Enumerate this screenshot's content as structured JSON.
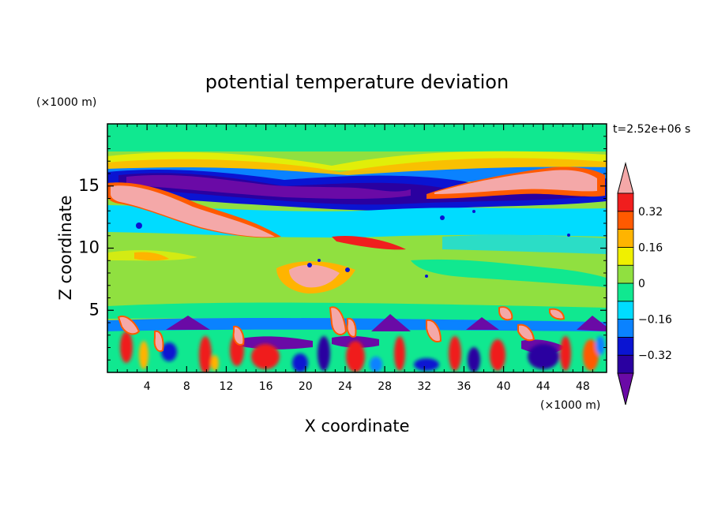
{
  "chart_data": {
    "type": "heatmap",
    "title": "potential temperature deviation",
    "time_label": "t=2.52e+06 s",
    "xlabel": "X coordinate",
    "ylabel": "Z coordinate",
    "x_unit": "(×1000 m)",
    "y_unit": "(×1000 m)",
    "xlim": [
      0,
      50.4
    ],
    "ylim": [
      0,
      20
    ],
    "x_ticks": [
      "4",
      "8",
      "12",
      "16",
      "20",
      "24",
      "28",
      "32",
      "36",
      "40",
      "44",
      "48"
    ],
    "x_tick_values": [
      4,
      8,
      12,
      16,
      20,
      24,
      28,
      32,
      36,
      40,
      44,
      48
    ],
    "y_ticks": [
      "5",
      "10",
      "15"
    ],
    "y_tick_values": [
      5,
      10,
      15
    ],
    "colorbar": {
      "levels": [
        -0.4,
        -0.32,
        -0.24,
        -0.16,
        -0.08,
        0,
        0.08,
        0.16,
        0.24,
        0.32,
        0.4
      ],
      "colors": [
        "#6a0aa6",
        "#2a00a0",
        "#0a14d2",
        "#0a82ff",
        "#00dcff",
        "#10e890",
        "#90e040",
        "#f0f000",
        "#ffb400",
        "#ff5a00",
        "#f01e1e",
        "#f4a8a8"
      ],
      "tick_labels": [
        "0.32",
        "0.16",
        "0",
        "−0.16",
        "−0.32"
      ],
      "tick_values": [
        0.32,
        0.16,
        0,
        -0.16,
        -0.32
      ]
    },
    "features": [
      {
        "kind": "band",
        "z_range": [
          15.3,
          16.2
        ],
        "value": -0.36
      },
      {
        "kind": "band",
        "z_range": [
          12.5,
          15.5
        ],
        "value": -0.28
      },
      {
        "kind": "blob",
        "x": 9,
        "z": 13.2,
        "value": 0.42
      },
      {
        "kind": "blob",
        "x": 42,
        "z": 15.2,
        "value": 0.42
      },
      {
        "kind": "blob",
        "x": 21,
        "z": 8.2,
        "value": 0.42
      },
      {
        "kind": "layer",
        "z_range": [
          0,
          5
        ],
        "value": "mixed"
      }
    ]
  }
}
